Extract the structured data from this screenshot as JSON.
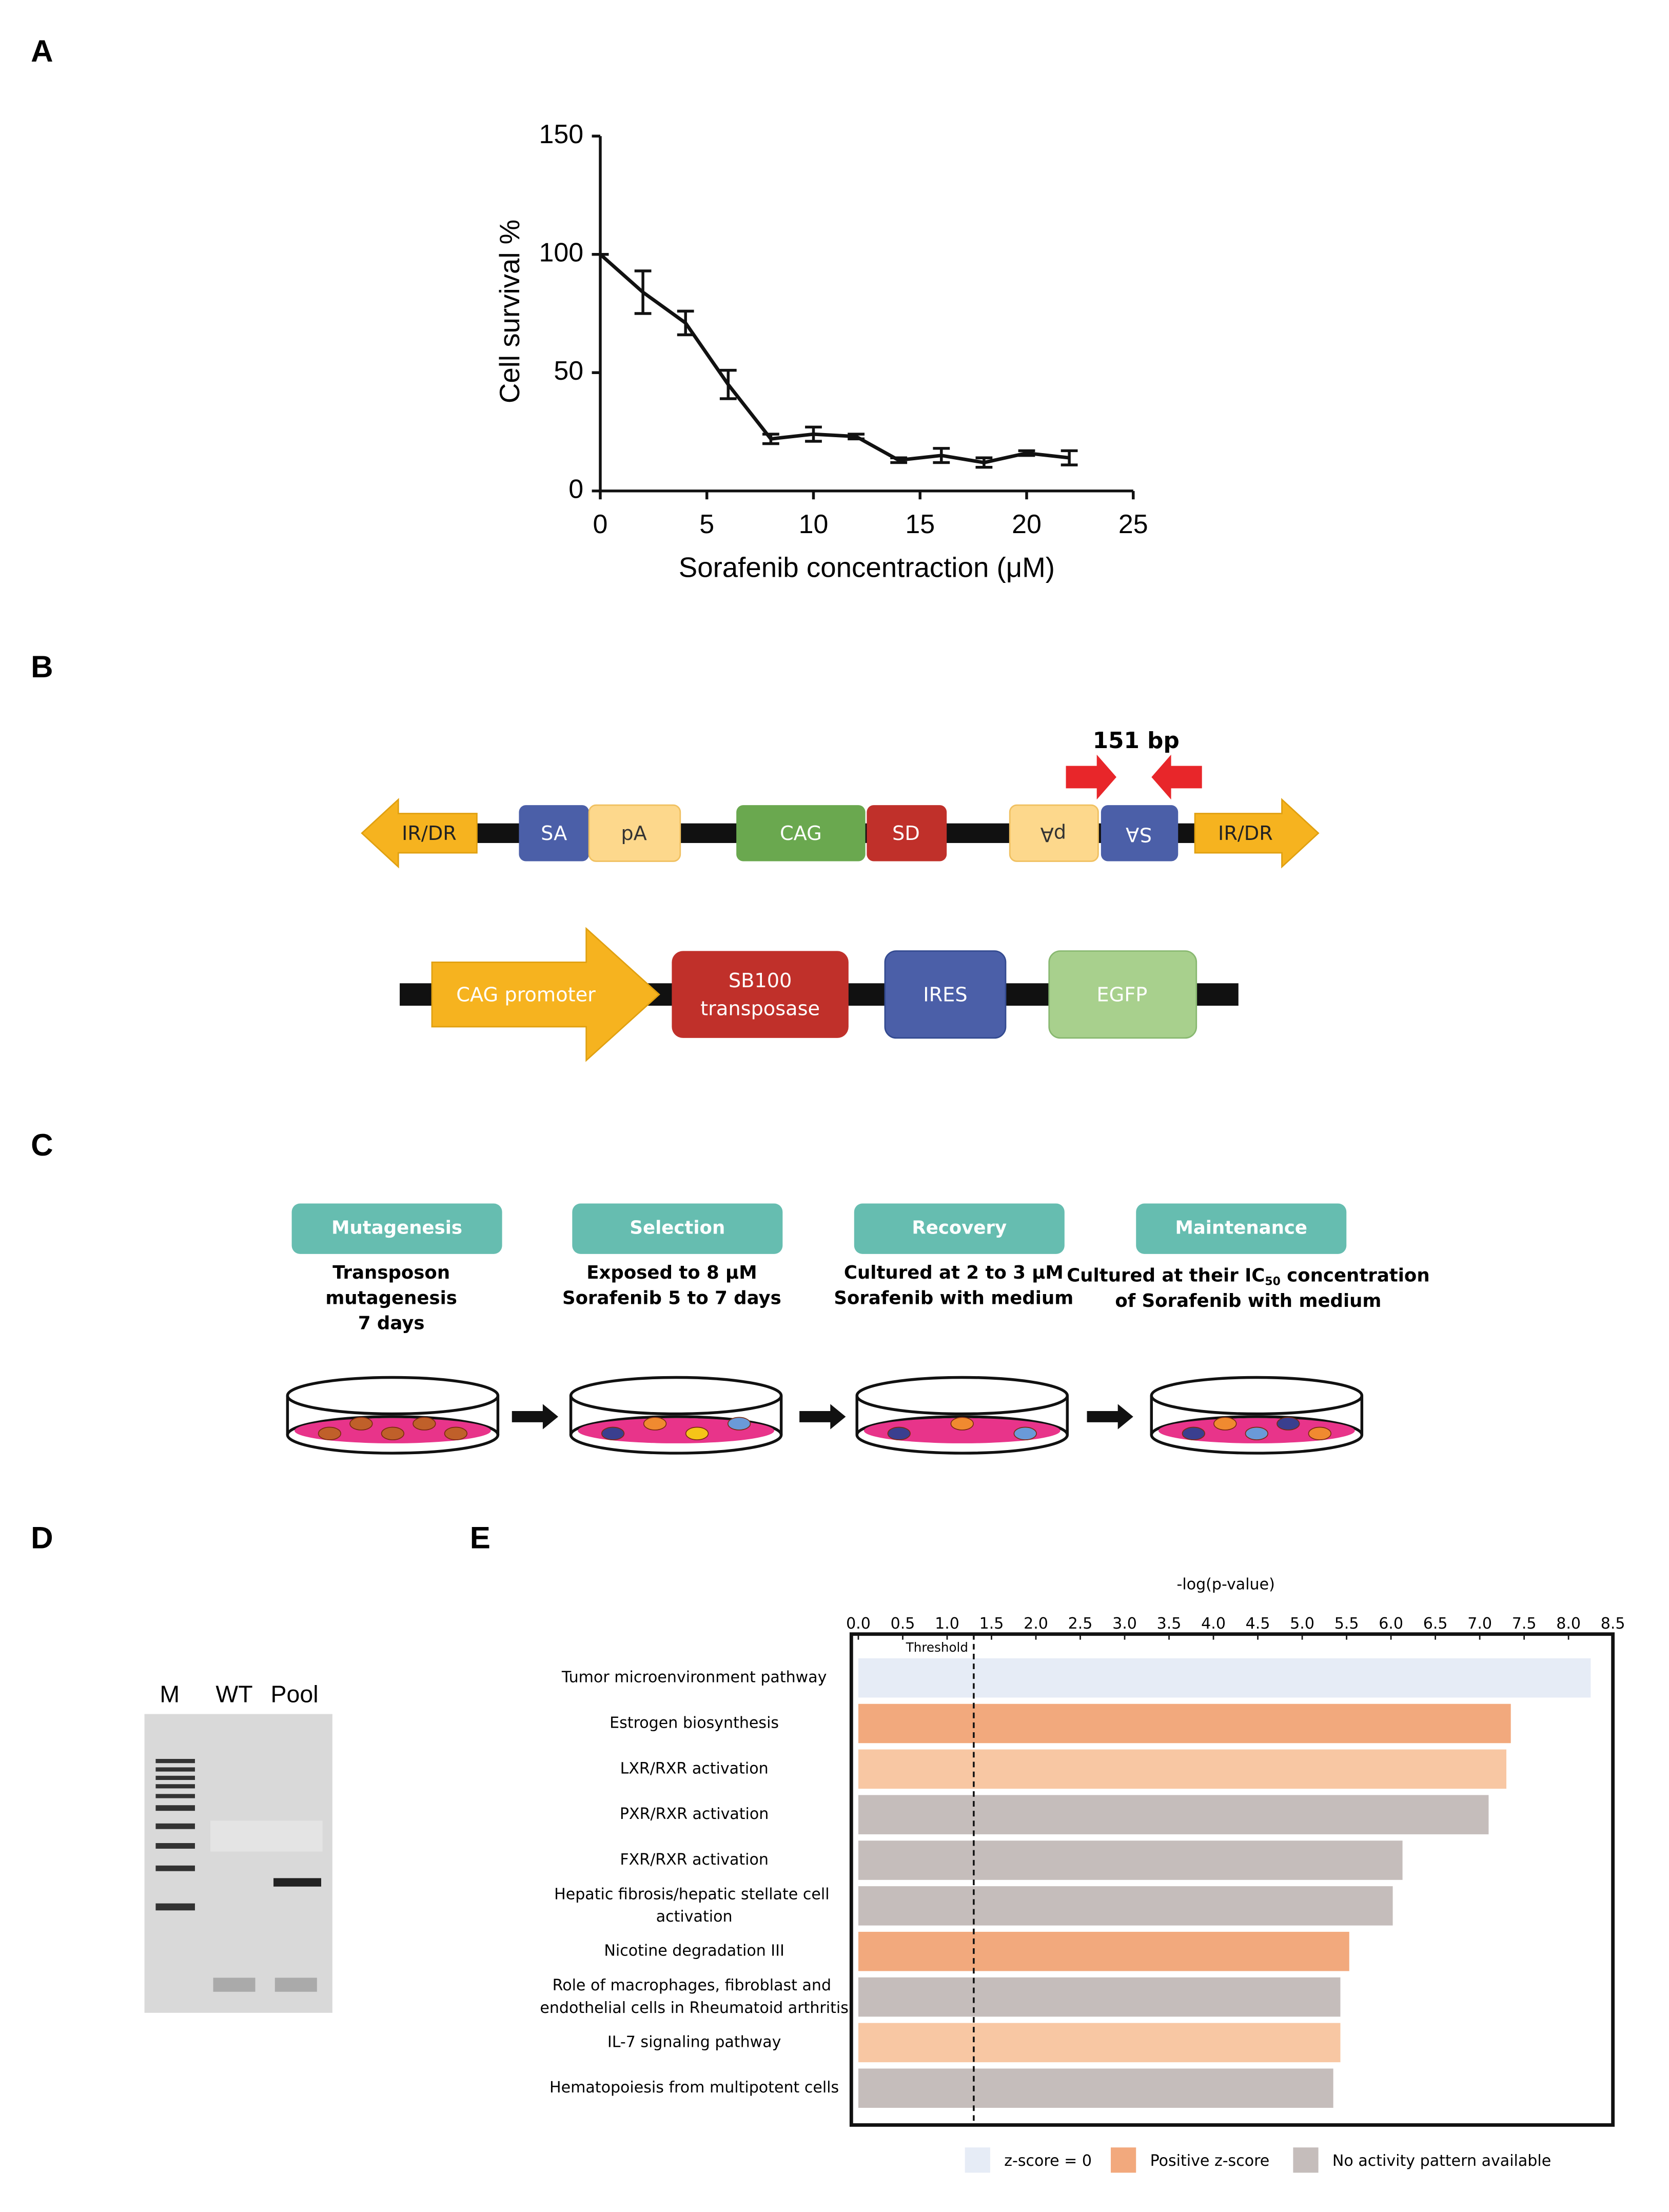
{
  "panel_labels": [
    "A",
    "B",
    "C",
    "D",
    "E"
  ],
  "chart_data": [
    {
      "type": "line",
      "xlabel": "Sorafenib concentraction (μM)",
      "ylabel": "Cell survival  %",
      "x": [
        0,
        2,
        4,
        6,
        8,
        10,
        12,
        14,
        16,
        18,
        20,
        22
      ],
      "values": [
        100,
        84,
        71,
        45,
        22,
        24,
        23,
        13,
        15,
        12,
        16,
        14
      ],
      "errors": [
        0,
        9,
        5,
        6,
        2,
        3,
        1,
        1,
        3,
        2,
        1,
        3
      ],
      "color": "#111111",
      "xlim": [
        0,
        25
      ],
      "xticks": [
        0,
        5,
        10,
        15,
        20,
        25
      ],
      "ylim": [
        0,
        150
      ],
      "yticks": [
        0,
        50,
        100,
        150
      ]
    },
    {
      "type": "bar",
      "orientation": "horizontal",
      "xlabel": "-log(p-value)",
      "categories": [
        "Tumor microenvironment pathway",
        "Estrogen biosynthesis",
        "LXR/RXR activation",
        "PXR/RXR activation",
        "FXR/RXR activation",
        "Hepatic fibrosis/hepatic stellate cell activation",
        "Nicotine degradation III",
        "Role of macrophages, fibroblast and endothelial cells in Rheumatoid arthritis",
        "IL-7 signaling pathway",
        "Hematopoiesis from multipotent cells"
      ],
      "values": [
        8.25,
        7.35,
        7.3,
        7.1,
        6.13,
        6.02,
        5.53,
        5.43,
        5.43,
        5.35
      ],
      "colors": [
        "#e6ecf6",
        "#f2a97d",
        "#f8c7a3",
        "#c5bdbb",
        "#c5bdbb",
        "#c5bdbb",
        "#f2a97d",
        "#c5bdbb",
        "#f8c7a3",
        "#c5bdbb"
      ],
      "xlim": [
        0,
        8.5
      ],
      "xticks": [
        {
          "value": 0,
          "label": "0.0"
        },
        0.5,
        {
          "value": 1,
          "label": "1.0"
        },
        1.5,
        {
          "value": 2,
          "label": "2.0"
        },
        2.5,
        {
          "value": 3,
          "label": "3.0"
        },
        3.5,
        {
          "value": 4,
          "label": "4.0"
        },
        4.5,
        {
          "value": 5,
          "label": "5.0"
        },
        5.5,
        {
          "value": 6,
          "label": "6.0"
        },
        6.5,
        {
          "value": 7,
          "label": "7.0"
        },
        7.5,
        {
          "value": 8,
          "label": "8.0"
        },
        8.5
      ],
      "threshold": 1.3,
      "threshold_label": "Threshold",
      "legend": [
        {
          "name": "z-score = 0",
          "color": "#e6ecf6"
        },
        {
          "name": "Positive z-score",
          "color": "#f2a97d"
        },
        {
          "name": "No activity pattern  available",
          "color": "#c5bdbb"
        }
      ]
    }
  ],
  "diagram_b": {
    "size_label": "151 bp",
    "transposon": [
      "IR/DR",
      "SA",
      "pA",
      "CAG",
      "SD",
      "pA",
      "SA",
      "IR/DR"
    ],
    "transposase": [
      "CAG promoter",
      "SB100",
      "transposase",
      "IRES",
      "EGFP"
    ]
  },
  "diagram_c": {
    "steps": [
      {
        "title": "Mutagenesis",
        "lines": [
          "Transposon",
          "mutagenesis",
          "7 days"
        ]
      },
      {
        "title": "Selection",
        "lines": [
          "Exposed to 8 μM",
          "Sorafenib 5 to 7 days"
        ]
      },
      {
        "title": "Recovery",
        "lines": [
          "Cultured at 2 to 3 μM",
          "Sorafenib with medium"
        ]
      },
      {
        "title": "Maintenance",
        "lines": [
          "Cultured at their IC",
          "50",
          " concentration",
          "of Sorafenib with medium"
        ]
      }
    ]
  },
  "gel_d": {
    "lanes": [
      "M",
      "WT",
      "Pool"
    ]
  }
}
